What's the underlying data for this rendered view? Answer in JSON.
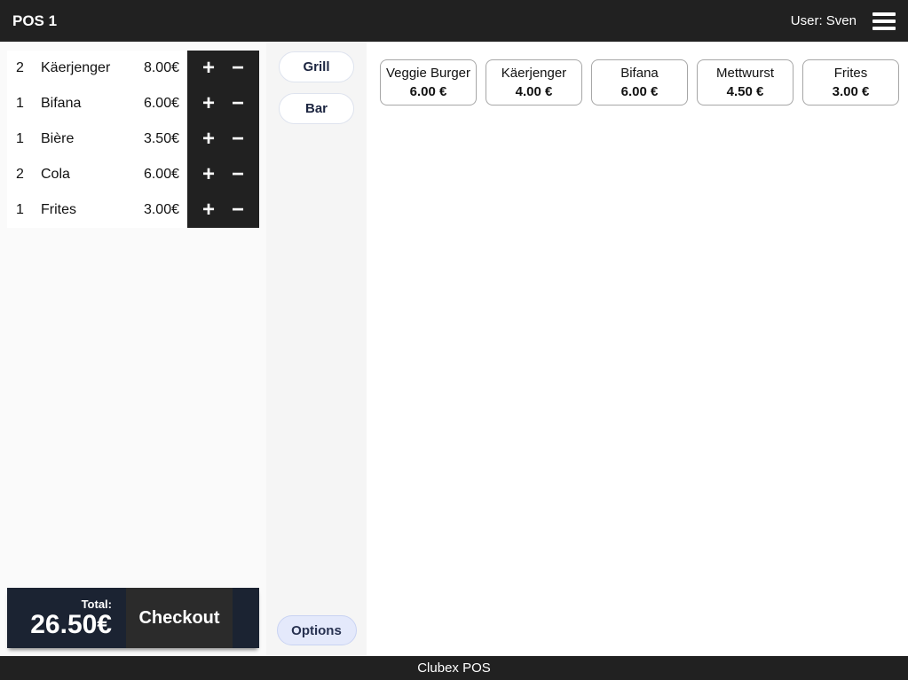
{
  "header": {
    "title": "POS 1",
    "user": "User: Sven"
  },
  "order": {
    "items": [
      {
        "qty": "2",
        "name": "Käerjenger",
        "price": "8.00€"
      },
      {
        "qty": "1",
        "name": "Bifana",
        "price": "6.00€"
      },
      {
        "qty": "1",
        "name": "Bière",
        "price": "3.50€"
      },
      {
        "qty": "2",
        "name": "Cola",
        "price": "6.00€"
      },
      {
        "qty": "1",
        "name": "Frites",
        "price": "3.00€"
      }
    ],
    "increase_label": "+",
    "decrease_label": "−",
    "total_label": "Total:",
    "total_value": "26.50€",
    "checkout_label": "Checkout"
  },
  "categories": {
    "items": [
      {
        "label": "Grill"
      },
      {
        "label": "Bar"
      }
    ],
    "options_label": "Options"
  },
  "products": [
    {
      "name": "Veggie Burger",
      "price": "6.00 €"
    },
    {
      "name": "Käerjenger",
      "price": "4.00 €"
    },
    {
      "name": "Bifana",
      "price": "6.00 €"
    },
    {
      "name": "Mettwurst",
      "price": "4.50 €"
    },
    {
      "name": "Frites",
      "price": "3.00 €"
    }
  ],
  "footer": {
    "brand": "Clubex POS"
  },
  "colors": {
    "topbar_bg": "#212121",
    "controls_bg": "#212121",
    "total_bg": "#1b2332",
    "checkout_bg": "#2b2b2b",
    "left_panel_bg": "#fafafa",
    "category_col_bg": "#f5f5f5",
    "options_bg": "#e4e9fb"
  }
}
